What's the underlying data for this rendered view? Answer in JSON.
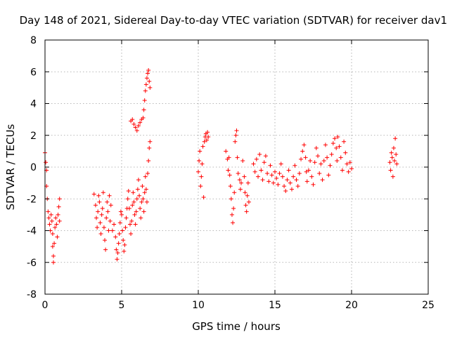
{
  "chart_data": {
    "type": "scatter",
    "title": "Day 148 of 2021, Sidereal Day-to-day VTEC variation (SDTVAR) for receiver dav1",
    "xlabel": "GPS time / hours",
    "ylabel": "SDTVAR / TECUs",
    "xlim": [
      0,
      25
    ],
    "ylim": [
      -8,
      8
    ],
    "xticks": [
      0,
      5,
      10,
      15,
      20,
      25
    ],
    "yticks": [
      -8,
      -6,
      -4,
      -2,
      0,
      2,
      4,
      6,
      8
    ],
    "xtick_labels": [
      "0",
      "5",
      "10",
      "15",
      "20",
      "25"
    ],
    "ytick_labels": [
      "-8",
      "-6",
      "-4",
      "-2",
      "0",
      "2",
      "4",
      "6",
      "8"
    ],
    "grid": true,
    "marker": "+",
    "marker_color": "#ff0000",
    "series": [
      {
        "name": "SDTVAR",
        "points": [
          [
            0.0,
            0.9
          ],
          [
            0.05,
            0.3
          ],
          [
            0.1,
            -0.2
          ],
          [
            0.1,
            -1.2
          ],
          [
            0.15,
            -2.0
          ],
          [
            0.2,
            -2.8
          ],
          [
            0.25,
            -3.2
          ],
          [
            0.3,
            -3.6
          ],
          [
            0.35,
            -4.0
          ],
          [
            0.4,
            -3.0
          ],
          [
            0.45,
            -3.4
          ],
          [
            0.5,
            -4.2
          ],
          [
            0.5,
            -5.0
          ],
          [
            0.55,
            -5.6
          ],
          [
            0.55,
            -6.0
          ],
          [
            0.6,
            -4.8
          ],
          [
            0.65,
            -3.8
          ],
          [
            0.7,
            -3.2
          ],
          [
            0.75,
            -3.6
          ],
          [
            0.8,
            -4.4
          ],
          [
            0.85,
            -3.0
          ],
          [
            0.9,
            -2.5
          ],
          [
            0.95,
            -3.4
          ],
          [
            0.95,
            -2.0
          ],
          [
            3.2,
            -1.7
          ],
          [
            3.3,
            -2.4
          ],
          [
            3.35,
            -3.2
          ],
          [
            3.4,
            -3.8
          ],
          [
            3.45,
            -2.8
          ],
          [
            3.5,
            -1.8
          ],
          [
            3.55,
            -2.2
          ],
          [
            3.6,
            -3.5
          ],
          [
            3.65,
            -4.2
          ],
          [
            3.7,
            -3.0
          ],
          [
            3.75,
            -2.6
          ],
          [
            3.8,
            -1.6
          ],
          [
            3.85,
            -3.8
          ],
          [
            3.9,
            -4.6
          ],
          [
            3.95,
            -5.2
          ],
          [
            4.0,
            -3.2
          ],
          [
            4.05,
            -2.2
          ],
          [
            4.1,
            -2.8
          ],
          [
            4.15,
            -4.0
          ],
          [
            4.2,
            -1.8
          ],
          [
            4.25,
            -3.4
          ],
          [
            4.3,
            -2.4
          ],
          [
            4.4,
            -4.0
          ],
          [
            4.5,
            -3.6
          ],
          [
            4.6,
            -4.4
          ],
          [
            4.65,
            -5.2
          ],
          [
            4.7,
            -5.8
          ],
          [
            4.75,
            -5.4
          ],
          [
            4.8,
            -4.8
          ],
          [
            4.85,
            -4.2
          ],
          [
            4.9,
            -3.5
          ],
          [
            4.95,
            -2.8
          ],
          [
            5.0,
            -3.0
          ],
          [
            5.05,
            -4.0
          ],
          [
            5.1,
            -4.6
          ],
          [
            5.15,
            -5.3
          ],
          [
            5.2,
            -4.9
          ],
          [
            5.25,
            -3.8
          ],
          [
            5.3,
            -3.2
          ],
          [
            5.35,
            -2.6
          ],
          [
            5.4,
            -2.0
          ],
          [
            5.45,
            -1.5
          ],
          [
            5.5,
            -2.6
          ],
          [
            5.55,
            -3.6
          ],
          [
            5.6,
            -4.2
          ],
          [
            5.65,
            -3.4
          ],
          [
            5.7,
            -2.4
          ],
          [
            5.75,
            -1.6
          ],
          [
            5.8,
            -2.2
          ],
          [
            5.85,
            -3.0
          ],
          [
            5.9,
            -3.6
          ],
          [
            5.95,
            -2.8
          ],
          [
            6.0,
            -2.0
          ],
          [
            6.05,
            -1.4
          ],
          [
            6.1,
            -0.8
          ],
          [
            6.15,
            -1.8
          ],
          [
            6.2,
            -2.6
          ],
          [
            6.25,
            -3.2
          ],
          [
            6.3,
            -2.2
          ],
          [
            6.35,
            -1.2
          ],
          [
            6.4,
            -2.0
          ],
          [
            6.45,
            -2.8
          ],
          [
            6.5,
            -1.6
          ],
          [
            6.55,
            -0.6
          ],
          [
            6.6,
            -1.4
          ],
          [
            6.65,
            -2.2
          ],
          [
            6.7,
            -0.4
          ],
          [
            6.75,
            0.4
          ],
          [
            6.8,
            1.2
          ],
          [
            6.85,
            1.6
          ],
          [
            5.6,
            2.9
          ],
          [
            5.7,
            3.0
          ],
          [
            5.8,
            2.7
          ],
          [
            5.9,
            2.5
          ],
          [
            6.0,
            2.3
          ],
          [
            6.1,
            2.6
          ],
          [
            6.2,
            2.8
          ],
          [
            6.3,
            3.0
          ],
          [
            6.4,
            3.1
          ],
          [
            6.45,
            3.6
          ],
          [
            6.5,
            4.2
          ],
          [
            6.55,
            4.8
          ],
          [
            6.6,
            5.2
          ],
          [
            6.65,
            5.6
          ],
          [
            6.7,
            5.9
          ],
          [
            6.75,
            6.1
          ],
          [
            6.8,
            5.4
          ],
          [
            6.85,
            5.0
          ],
          [
            10.0,
            -0.3
          ],
          [
            10.05,
            0.4
          ],
          [
            10.1,
            1.0
          ],
          [
            10.15,
            -1.2
          ],
          [
            10.2,
            -0.6
          ],
          [
            10.25,
            0.2
          ],
          [
            10.3,
            1.3
          ],
          [
            10.35,
            -1.9
          ],
          [
            10.4,
            1.6
          ],
          [
            10.45,
            1.9
          ],
          [
            10.5,
            2.1
          ],
          [
            10.55,
            1.7
          ],
          [
            10.6,
            2.2
          ],
          [
            10.65,
            1.9
          ],
          [
            11.8,
            1.0
          ],
          [
            11.9,
            0.5
          ],
          [
            11.95,
            -0.2
          ],
          [
            12.0,
            0.6
          ],
          [
            12.05,
            -0.5
          ],
          [
            12.1,
            -1.2
          ],
          [
            12.15,
            -2.0
          ],
          [
            12.2,
            -3.0
          ],
          [
            12.25,
            -3.5
          ],
          [
            12.3,
            -2.6
          ],
          [
            12.35,
            -1.6
          ],
          [
            12.4,
            1.6
          ],
          [
            12.45,
            2.0
          ],
          [
            12.5,
            2.3
          ],
          [
            12.55,
            0.6
          ],
          [
            12.6,
            -0.4
          ],
          [
            12.7,
            -0.8
          ],
          [
            12.75,
            -1.4
          ],
          [
            12.8,
            -1.0
          ],
          [
            12.9,
            0.4
          ],
          [
            13.0,
            -0.6
          ],
          [
            13.05,
            -1.6
          ],
          [
            13.1,
            -2.4
          ],
          [
            13.15,
            -2.8
          ],
          [
            13.2,
            -1.8
          ],
          [
            13.25,
            -1.0
          ],
          [
            13.3,
            -2.2
          ],
          [
            13.6,
            0.2
          ],
          [
            13.7,
            -0.3
          ],
          [
            13.8,
            0.5
          ],
          [
            13.9,
            -0.6
          ],
          [
            14.0,
            0.8
          ],
          [
            14.1,
            -0.2
          ],
          [
            14.2,
            -0.8
          ],
          [
            14.3,
            0.3
          ],
          [
            14.4,
            0.7
          ],
          [
            14.5,
            -0.4
          ],
          [
            14.6,
            -0.9
          ],
          [
            14.7,
            0.1
          ],
          [
            14.8,
            -0.5
          ],
          [
            14.9,
            -1.0
          ],
          [
            15.0,
            -0.3
          ],
          [
            15.1,
            -0.7
          ],
          [
            15.2,
            -1.1
          ],
          [
            15.3,
            -0.4
          ],
          [
            15.4,
            0.2
          ],
          [
            15.5,
            -0.6
          ],
          [
            15.6,
            -1.2
          ],
          [
            15.7,
            -1.5
          ],
          [
            15.8,
            -0.8
          ],
          [
            15.9,
            -0.2
          ],
          [
            16.0,
            -1.0
          ],
          [
            16.1,
            -1.4
          ],
          [
            16.2,
            -0.6
          ],
          [
            16.3,
            0.1
          ],
          [
            16.4,
            -0.8
          ],
          [
            16.5,
            -1.2
          ],
          [
            16.6,
            -0.4
          ],
          [
            16.7,
            0.5
          ],
          [
            16.8,
            1.0
          ],
          [
            16.9,
            1.4
          ],
          [
            17.0,
            0.6
          ],
          [
            17.05,
            -0.3
          ],
          [
            17.1,
            -0.9
          ],
          [
            17.2,
            -0.2
          ],
          [
            17.3,
            0.4
          ],
          [
            17.4,
            -0.6
          ],
          [
            17.5,
            -1.1
          ],
          [
            17.6,
            0.3
          ],
          [
            17.7,
            1.2
          ],
          [
            17.8,
            0.7
          ],
          [
            17.9,
            -0.4
          ],
          [
            18.0,
            0.2
          ],
          [
            18.1,
            -0.8
          ],
          [
            18.2,
            0.4
          ],
          [
            18.3,
            1.4
          ],
          [
            18.4,
            0.6
          ],
          [
            18.5,
            -0.5
          ],
          [
            18.6,
            0.1
          ],
          [
            18.7,
            0.8
          ],
          [
            18.8,
            1.5
          ],
          [
            18.9,
            1.8
          ],
          [
            19.0,
            1.2
          ],
          [
            19.05,
            0.4
          ],
          [
            19.1,
            1.9
          ],
          [
            19.2,
            1.3
          ],
          [
            19.3,
            0.6
          ],
          [
            19.4,
            -0.2
          ],
          [
            19.5,
            1.6
          ],
          [
            19.6,
            0.9
          ],
          [
            19.7,
            0.2
          ],
          [
            19.8,
            -0.3
          ],
          [
            19.9,
            0.3
          ],
          [
            20.0,
            -0.1
          ],
          [
            22.5,
            0.3
          ],
          [
            22.55,
            -0.2
          ],
          [
            22.6,
            0.9
          ],
          [
            22.65,
            0.6
          ],
          [
            22.7,
            -0.6
          ],
          [
            22.75,
            1.2
          ],
          [
            22.8,
            0.4
          ],
          [
            22.85,
            1.8
          ],
          [
            22.9,
            0.8
          ],
          [
            22.95,
            0.2
          ]
        ]
      }
    ]
  }
}
